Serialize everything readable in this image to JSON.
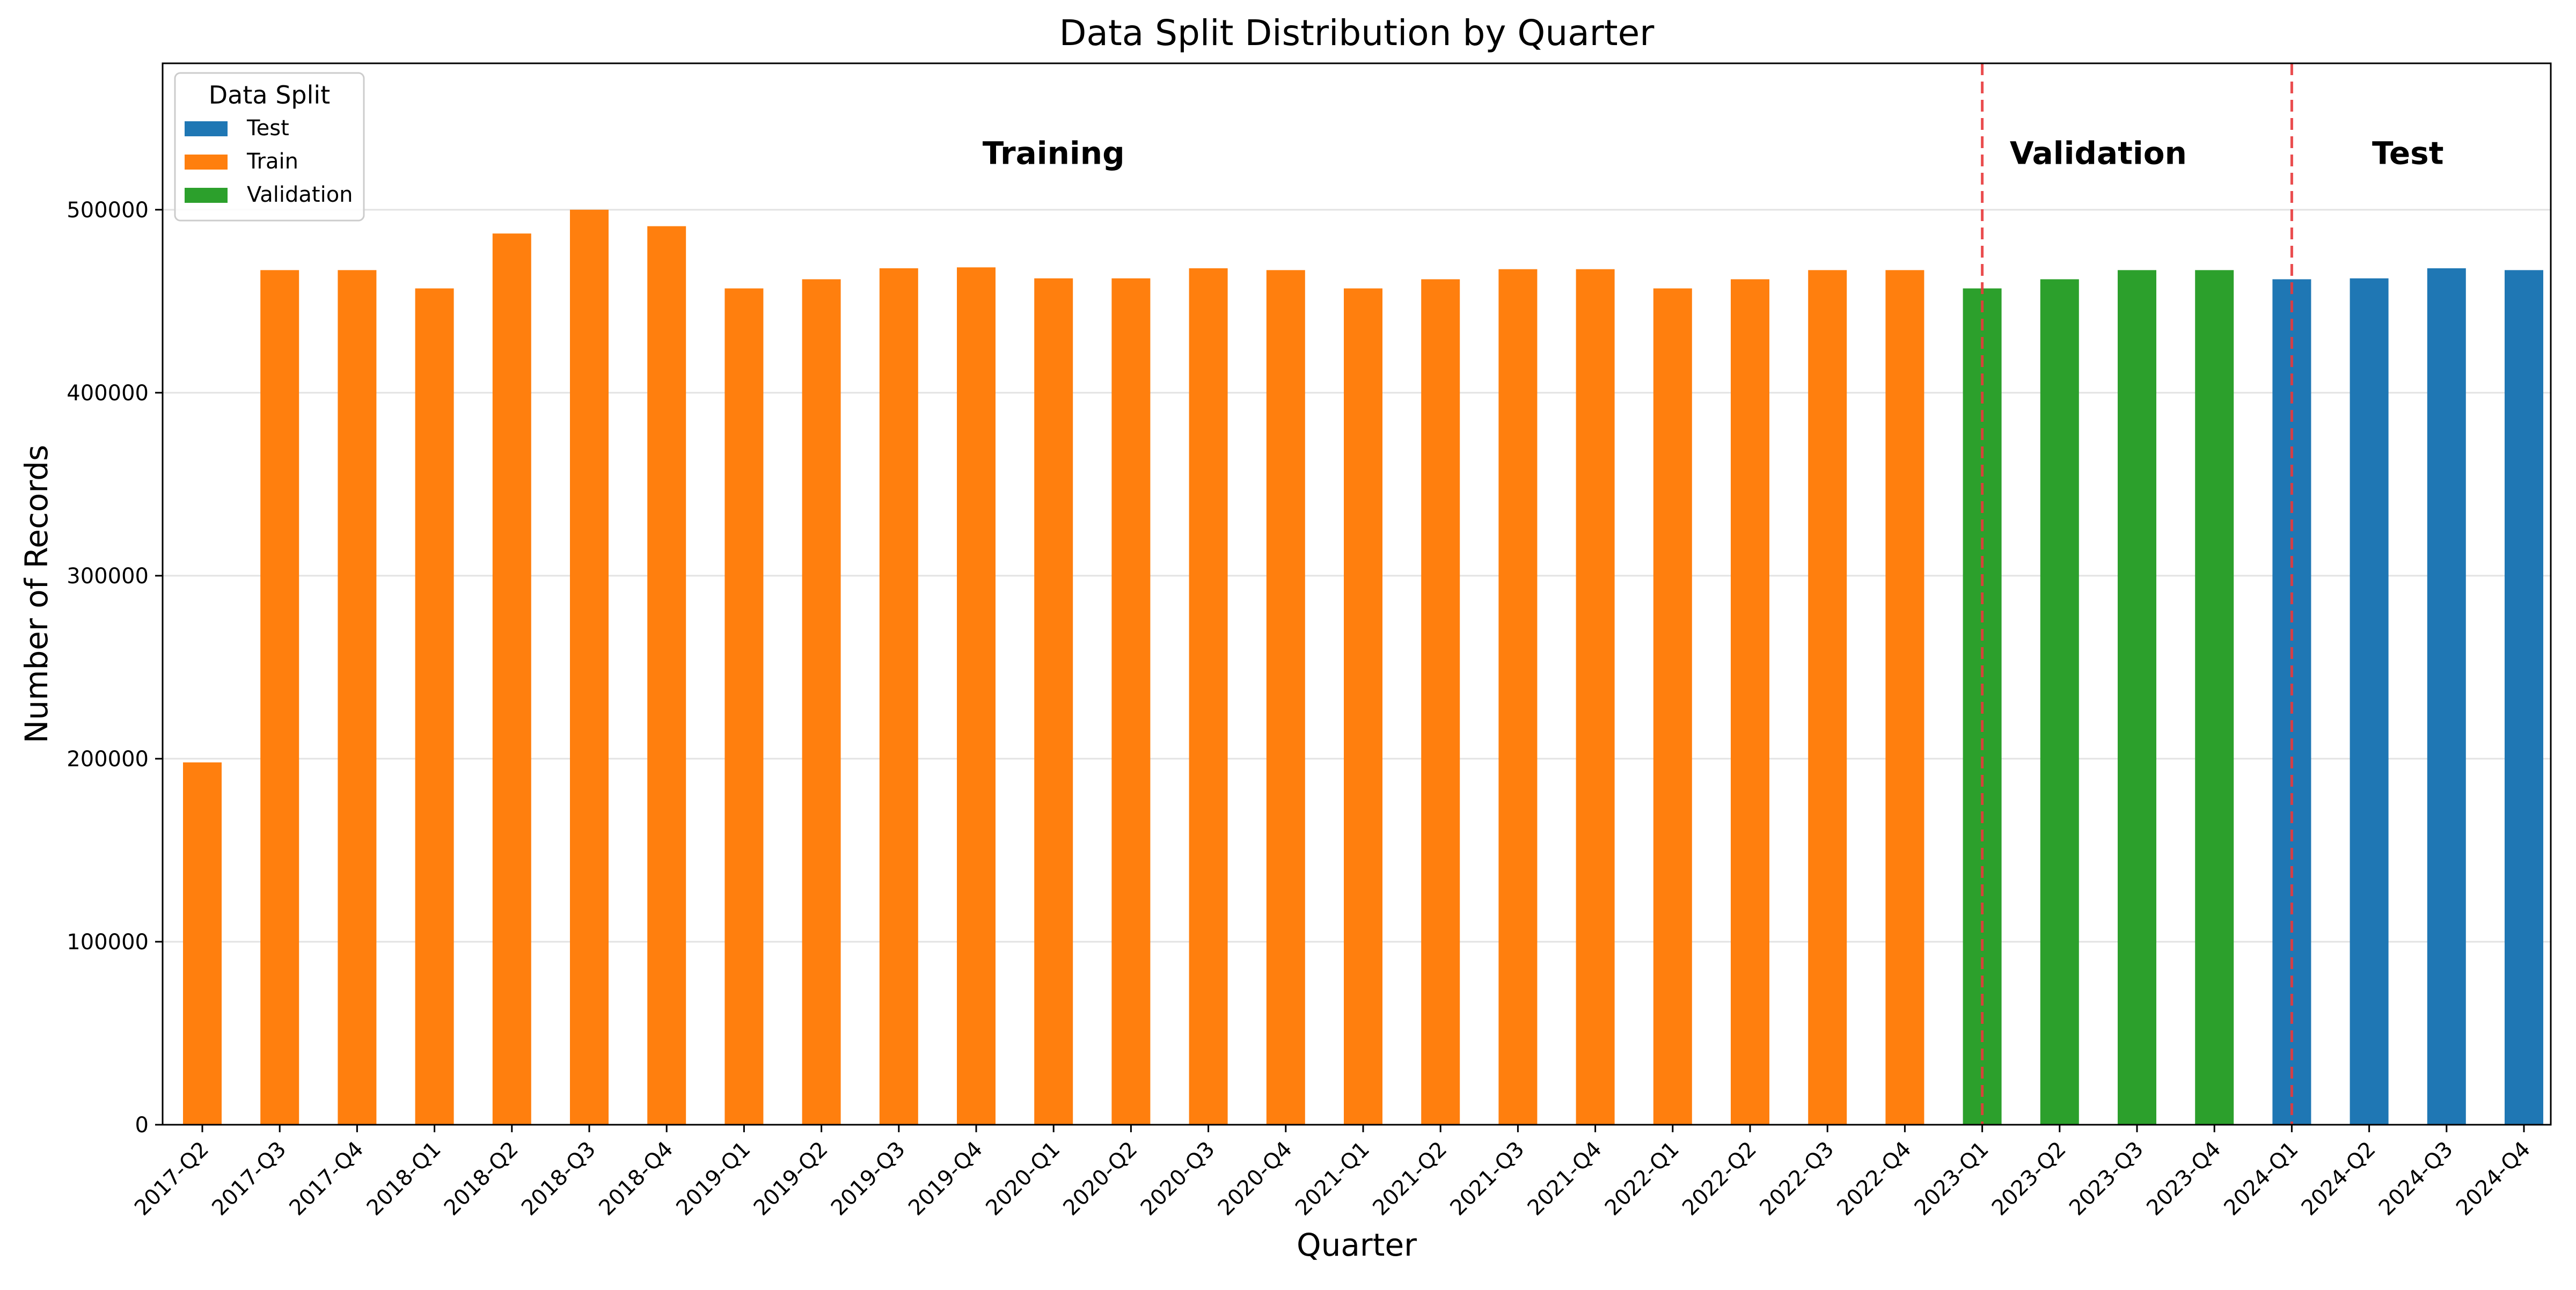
{
  "chart_data": {
    "type": "bar",
    "title": "Data Split Distribution by Quarter",
    "xlabel": "Quarter",
    "ylabel": "Number of Records",
    "ylim": [
      0,
      580000
    ],
    "yticks": [
      0,
      100000,
      200000,
      300000,
      400000,
      500000
    ],
    "ytick_labels": [
      "0",
      "100000",
      "200000",
      "300000",
      "400000",
      "500000"
    ],
    "grid": "horizontal",
    "legend": {
      "title": "Data Split",
      "placement": "top-left",
      "entries": [
        {
          "name": "Test",
          "color": "#1f77b4"
        },
        {
          "name": "Train",
          "color": "#ff7f0e"
        },
        {
          "name": "Validation",
          "color": "#2ca02c"
        }
      ]
    },
    "categories": [
      "2017-Q2",
      "2017-Q3",
      "2017-Q4",
      "2018-Q1",
      "2018-Q2",
      "2018-Q3",
      "2018-Q4",
      "2019-Q1",
      "2019-Q2",
      "2019-Q3",
      "2019-Q4",
      "2020-Q1",
      "2020-Q2",
      "2020-Q3",
      "2020-Q4",
      "2021-Q1",
      "2021-Q2",
      "2021-Q3",
      "2021-Q4",
      "2022-Q1",
      "2022-Q2",
      "2022-Q3",
      "2022-Q4",
      "2023-Q1",
      "2023-Q2",
      "2023-Q3",
      "2023-Q4",
      "2024-Q1",
      "2024-Q2",
      "2024-Q3",
      "2024-Q4"
    ],
    "values": [
      198000,
      467000,
      467000,
      457000,
      487000,
      500000,
      491000,
      457000,
      462000,
      468000,
      468500,
      462500,
      462500,
      468000,
      467000,
      457000,
      462000,
      467500,
      467500,
      457000,
      462000,
      467000,
      467000,
      457000,
      462000,
      467000,
      467000,
      462000,
      462500,
      468000,
      467000
    ],
    "splits": [
      "Train",
      "Train",
      "Train",
      "Train",
      "Train",
      "Train",
      "Train",
      "Train",
      "Train",
      "Train",
      "Train",
      "Train",
      "Train",
      "Train",
      "Train",
      "Train",
      "Train",
      "Train",
      "Train",
      "Train",
      "Train",
      "Train",
      "Train",
      "Validation",
      "Validation",
      "Validation",
      "Validation",
      "Test",
      "Test",
      "Test",
      "Test"
    ],
    "split_lines": {
      "categories": [
        "2023-Q1",
        "2024-Q1"
      ],
      "color": "#e8383b",
      "style": "dashed"
    },
    "region_labels": [
      {
        "text": "Training",
        "from": "2017-Q2",
        "to": "2022-Q4"
      },
      {
        "text": "Validation",
        "from": "2023-Q1",
        "to": "2023-Q4"
      },
      {
        "text": "Test",
        "from": "2024-Q1",
        "to": "2024-Q4"
      }
    ]
  }
}
